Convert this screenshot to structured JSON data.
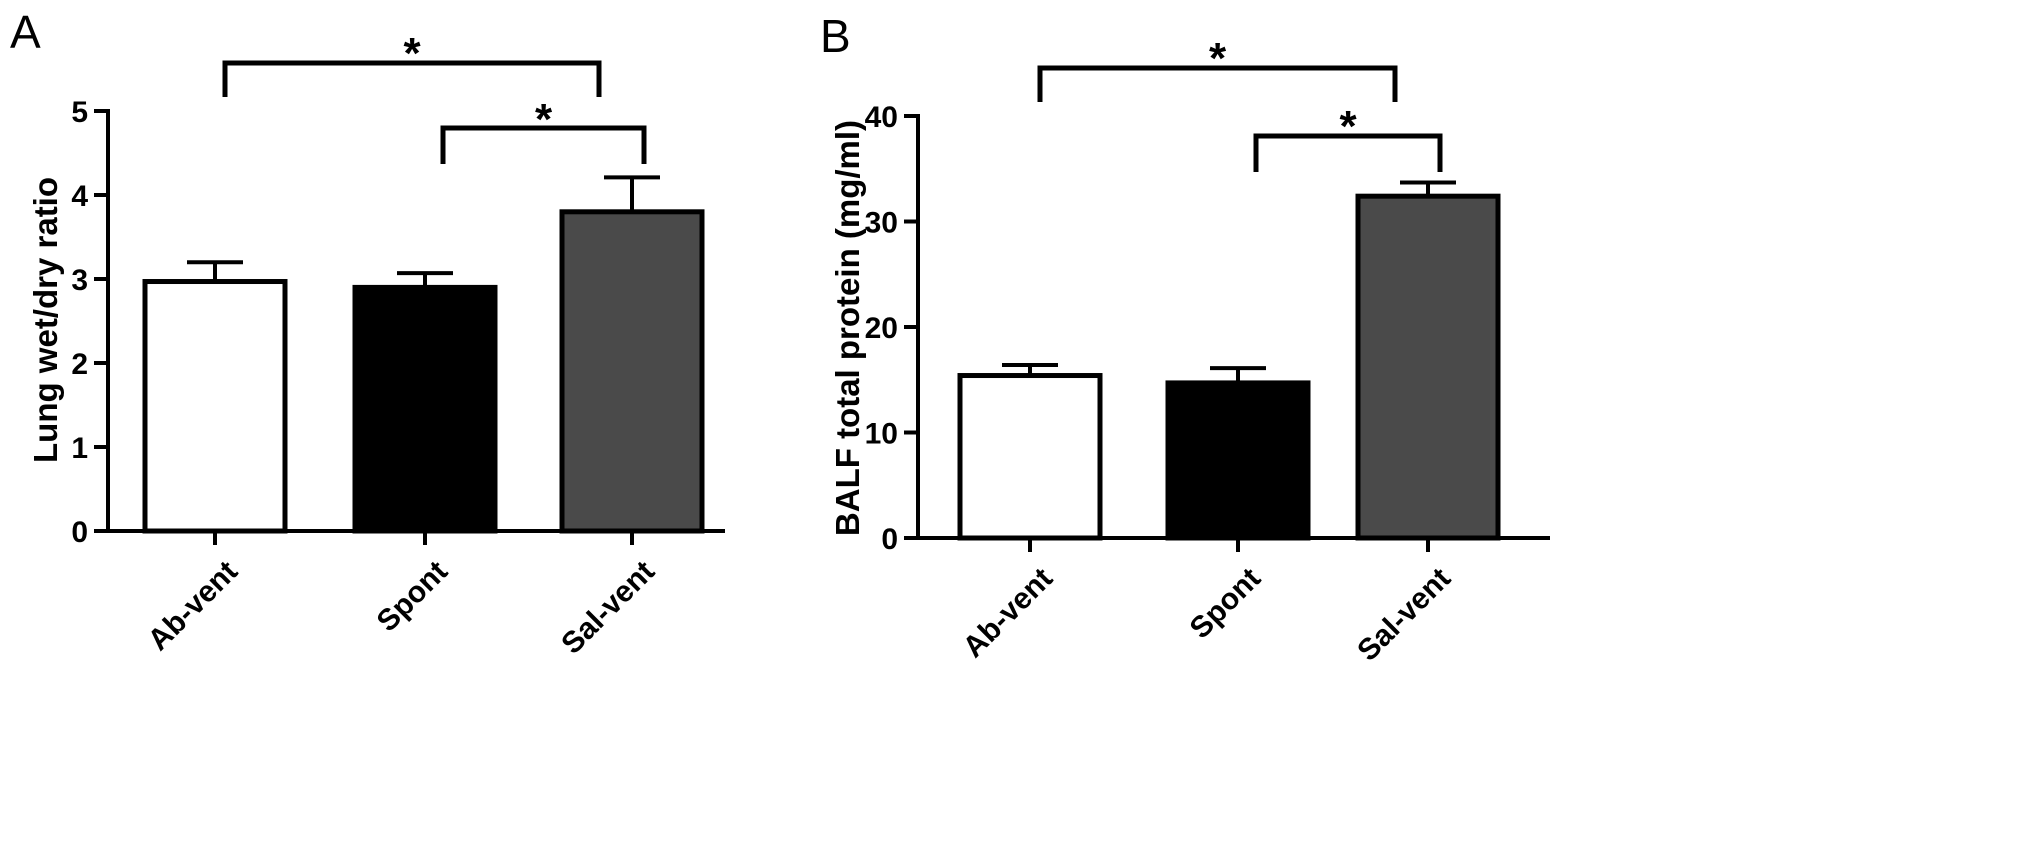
{
  "chart_data": [
    {
      "panel": "A",
      "type": "bar",
      "categories": [
        "Ab-vent",
        "Spont",
        "Sal-vent"
      ],
      "values": [
        2.97,
        2.9,
        3.8
      ],
      "errors": [
        0.23,
        0.17,
        0.41
      ],
      "ylabel": "Lung wet/dry ratio",
      "ylim": [
        0,
        5
      ],
      "yticks": [
        0,
        1,
        2,
        3,
        4,
        5
      ],
      "bar_colors": [
        "#ffffff",
        "#000000",
        "#4a4a4a"
      ],
      "significance": [
        {
          "from": 0,
          "to": 2,
          "label": "*"
        },
        {
          "from": 1,
          "to": 2,
          "label": "*"
        }
      ]
    },
    {
      "panel": "B",
      "type": "bar",
      "categories": [
        "Ab-vent",
        "Spont",
        "Sal-vent"
      ],
      "values": [
        15.4,
        14.7,
        32.4
      ],
      "errors": [
        1.0,
        1.4,
        1.3
      ],
      "ylabel": "BALF total protein (mg/ml)",
      "ylim": [
        0,
        40
      ],
      "yticks": [
        0,
        10,
        20,
        30,
        40
      ],
      "bar_colors": [
        "#ffffff",
        "#000000",
        "#4a4a4a"
      ],
      "significance": [
        {
          "from": 0,
          "to": 2,
          "label": "*"
        },
        {
          "from": 1,
          "to": 2,
          "label": "*"
        }
      ]
    }
  ]
}
